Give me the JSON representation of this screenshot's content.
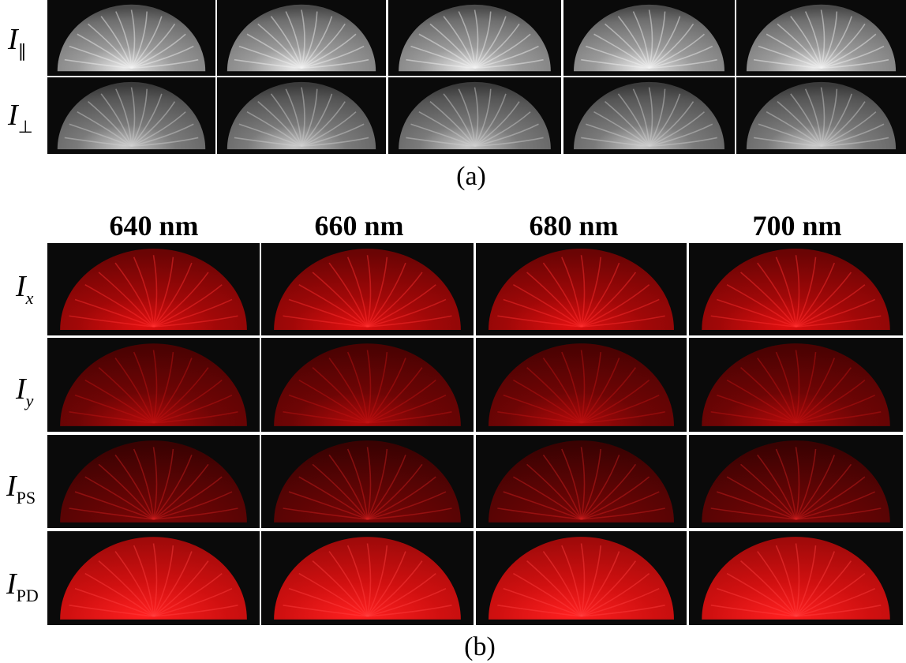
{
  "panel_a": {
    "rows": [
      {
        "symbol": "I",
        "subscript": "∥"
      },
      {
        "symbol": "I",
        "subscript": "⊥"
      }
    ],
    "caption": "(a)"
  },
  "panel_b": {
    "columns": [
      "640 nm",
      "660 nm",
      "680 nm",
      "700 nm"
    ],
    "rows": [
      {
        "symbol": "I",
        "subscript": "x"
      },
      {
        "symbol": "I",
        "subscript": "y"
      },
      {
        "symbol": "I",
        "subscript": "PS"
      },
      {
        "symbol": "I",
        "subscript": "PD"
      }
    ],
    "caption": "(b)"
  }
}
